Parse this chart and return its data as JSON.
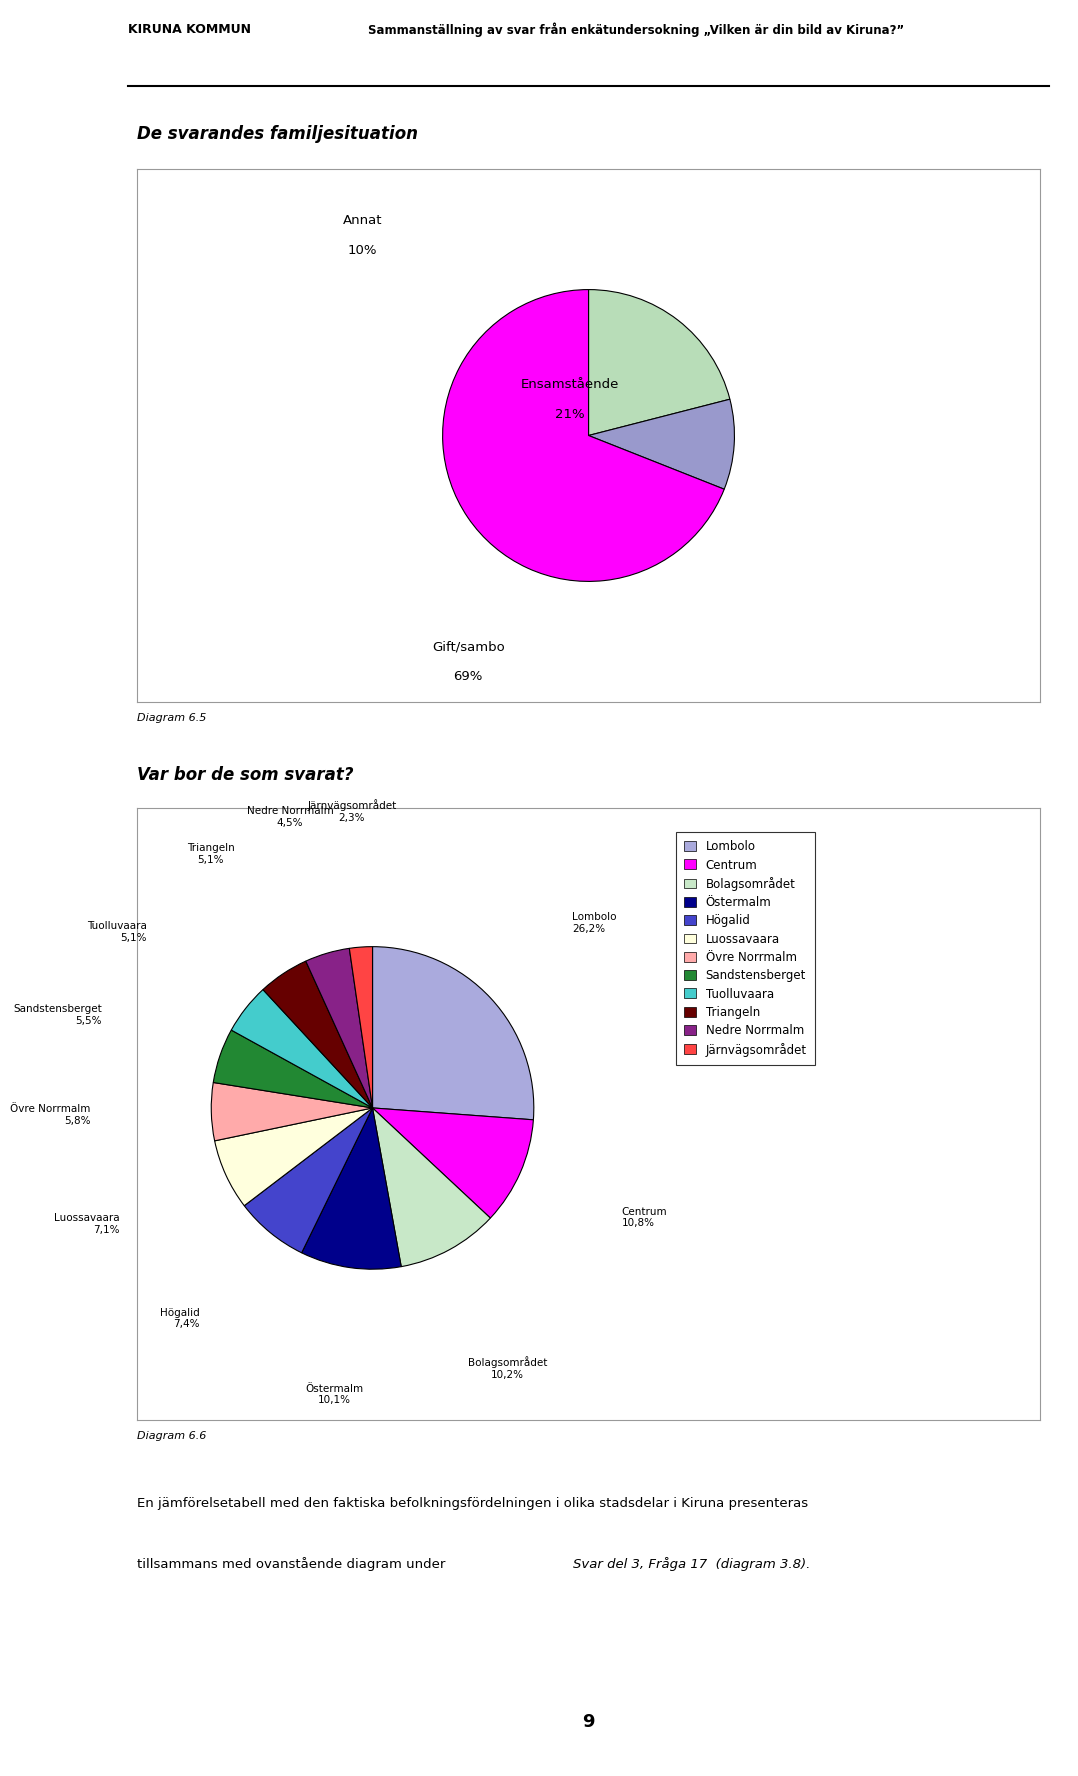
{
  "header_text": "Sammanställning av svar från enkätundersokning „Vilken är din bild av Kiruna?”",
  "section1_title": "De svarandes familjesituation",
  "pie1_labels": [
    "Ensamstående",
    "Annat",
    "Gift/sambo"
  ],
  "pie1_values": [
    21,
    10,
    69
  ],
  "pie1_colors": [
    "#b8ddb8",
    "#9999cc",
    "#ff00ff"
  ],
  "pie1_startangle": 90,
  "diagram1_label": "Diagram 6.5",
  "section2_title": "Var bor de som svarat?",
  "pie2_labels": [
    "Lombolo",
    "Centrum",
    "Bolagsområdet",
    "Östermalm",
    "Högalid",
    "Luossavaara",
    "Övre Norrmalm",
    "Sandstensberget",
    "Tuolluvaara",
    "Triangeln",
    "Nedre Norrmalm",
    "Järnvägsområdet"
  ],
  "pie2_values": [
    26.2,
    10.8,
    10.2,
    10.1,
    7.4,
    7.1,
    5.8,
    5.5,
    5.1,
    5.1,
    4.5,
    2.3
  ],
  "pie2_colors": [
    "#aaaadd",
    "#ff00ff",
    "#c8e8c8",
    "#00008b",
    "#4444cc",
    "#ffffdd",
    "#ffaaaa",
    "#228833",
    "#44cccc",
    "#660000",
    "#882288",
    "#ff4444"
  ],
  "pie2_startangle": 90,
  "diagram2_label": "Diagram 6.6",
  "legend2_colors": [
    "#aaaadd",
    "#ff00ff",
    "#c8e8c8",
    "#00008b",
    "#4444cc",
    "#ffffdd",
    "#ffaaaa",
    "#228833",
    "#44cccc",
    "#660000",
    "#882288",
    "#ff4444"
  ],
  "footer_text1": "En jämförelsetabell med den faktiska befolkningsfördelningen i olika stadsdelar i Kiruna presenteras",
  "footer_text2_normal": "tillsammans med ovanstående diagram under ",
  "footer_text2_italic": "Svar del 3, Fråga 17  (diagram 3.8).",
  "page_number": "9",
  "background_color": "#ffffff",
  "box_edge_color": "#999999"
}
